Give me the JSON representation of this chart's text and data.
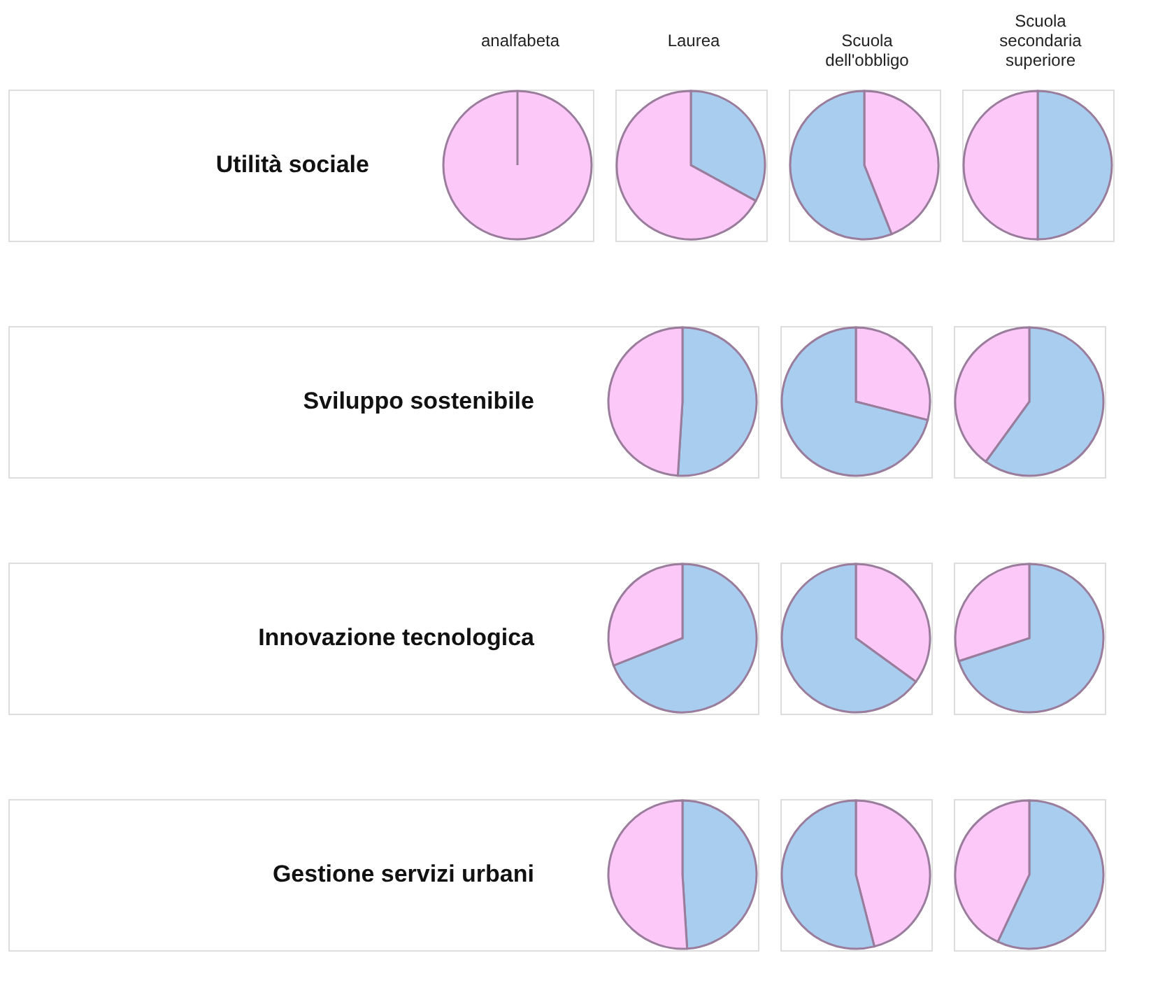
{
  "chart_data": [
    {
      "type": "pie",
      "title": "analfabeta",
      "ylabel": "Utilità  sociale",
      "categories": [
        null,
        null
      ],
      "values": [
        100,
        0
      ],
      "colors": [
        "#fcc8f8",
        "#a9cdee"
      ],
      "legend": false
    },
    {
      "type": "pie",
      "title": "Laurea",
      "categories": [
        null,
        null
      ],
      "values": [
        33,
        67
      ],
      "colors": [
        "#a9cdee",
        "#fcc8f8"
      ],
      "legend": false
    },
    {
      "type": "pie",
      "title": "Scuola dell'obbligo",
      "categories": [
        null,
        null
      ],
      "values": [
        44,
        56
      ],
      "colors": [
        "#fcc8f8",
        "#a9cdee"
      ],
      "legend": false
    },
    {
      "type": "pie",
      "title": "Scuola secondaria superiore",
      "categories": [
        null,
        null
      ],
      "values": [
        50,
        50
      ],
      "colors": [
        "#a9cdee",
        "#fcc8f8"
      ],
      "legend": false
    },
    {
      "type": "pie",
      "ylabel": "Sviluppo sostenibile",
      "categories": [
        null,
        null
      ],
      "values": [
        51,
        49
      ],
      "colors": [
        "#a9cdee",
        "#fcc8f8"
      ],
      "legend": false
    },
    {
      "type": "pie",
      "categories": [
        null,
        null
      ],
      "values": [
        29,
        71
      ],
      "colors": [
        "#fcc8f8",
        "#a9cdee"
      ],
      "legend": false
    },
    {
      "type": "pie",
      "categories": [
        null,
        null
      ],
      "values": [
        60,
        40
      ],
      "colors": [
        "#a9cdee",
        "#fcc8f8"
      ],
      "legend": false
    },
    {
      "type": "pie",
      "ylabel": "Innovazione tecnologica",
      "categories": [
        null,
        null
      ],
      "values": [
        69,
        31
      ],
      "colors": [
        "#a9cdee",
        "#fcc8f8"
      ],
      "legend": false
    },
    {
      "type": "pie",
      "categories": [
        null,
        null
      ],
      "values": [
        35,
        65
      ],
      "colors": [
        "#fcc8f8",
        "#a9cdee"
      ],
      "legend": false
    },
    {
      "type": "pie",
      "categories": [
        null,
        null
      ],
      "values": [
        70,
        30
      ],
      "colors": [
        "#a9cdee",
        "#fcc8f8"
      ],
      "legend": false
    },
    {
      "type": "pie",
      "ylabel": "Gestione servizi urbani",
      "categories": [
        null,
        null
      ],
      "values": [
        49,
        51
      ],
      "colors": [
        "#a9cdee",
        "#fcc8f8"
      ],
      "legend": false
    },
    {
      "type": "pie",
      "categories": [
        null,
        null
      ],
      "values": [
        46,
        54
      ],
      "colors": [
        "#fcc8f8",
        "#a9cdee"
      ],
      "legend": false
    },
    {
      "type": "pie",
      "categories": [
        null,
        null
      ],
      "values": [
        57,
        43
      ],
      "colors": [
        "#a9cdee",
        "#fcc8f8"
      ],
      "legend": false
    }
  ]
}
